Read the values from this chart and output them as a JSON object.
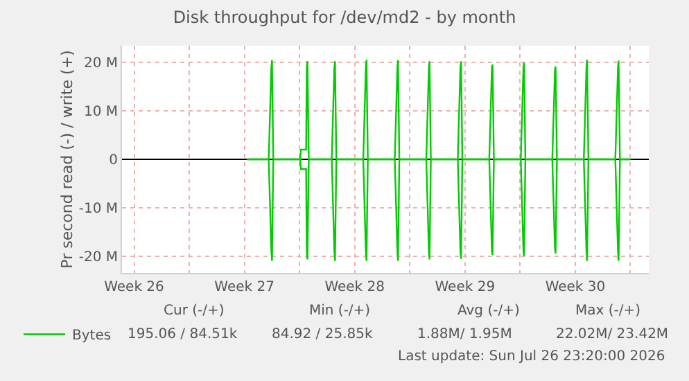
{
  "chart_data": {
    "type": "line",
    "title": "Disk throughput for /dev/md2 - by month",
    "ylabel": "Pr second read (-) / write (+)",
    "xlim": [
      "2026-06-24T17:30",
      "2026-07-28T04:00"
    ],
    "xticks": [
      {
        "value": "2026-06-25T12:00",
        "label": "Week 26"
      },
      {
        "value": "2026-06-29",
        "label": null
      },
      {
        "value": "2026-07-02T12:00",
        "label": "Week 27"
      },
      {
        "value": "2026-07-06",
        "label": null
      },
      {
        "value": "2026-07-09T12:00",
        "label": "Week 28"
      },
      {
        "value": "2026-07-13",
        "label": null
      },
      {
        "value": "2026-07-16T12:00",
        "label": "Week 29"
      },
      {
        "value": "2026-07-20",
        "label": null
      },
      {
        "value": "2026-07-23T12:00",
        "label": "Week 30"
      },
      {
        "value": "2026-07-27",
        "label": null
      }
    ],
    "ylim": [
      -23.5,
      23.5
    ],
    "yticks": [
      {
        "value": -20,
        "label": "-20 M"
      },
      {
        "value": -10,
        "label": "-10 M"
      },
      0,
      {
        "value": 10,
        "label": "10 M"
      },
      {
        "value": 20,
        "label": "20 M"
      }
    ],
    "grid": true,
    "legend": "bottom left",
    "marker": "none",
    "line_style": "solid",
    "x": [
      "2026-07-02T16:00",
      "2026-07-04T01:00",
      "2026-07-04T05:00",
      "2026-07-04T06:00",
      "2026-07-04T08:00",
      "2026-07-06T01:00",
      "2026-07-06T02:00",
      "2026-07-06T10:00",
      "2026-07-06T11:00",
      "2026-07-06T12:00",
      "2026-07-06T14:00",
      "2026-07-08T01:00",
      "2026-07-08T05:00",
      "2026-07-08T06:00",
      "2026-07-08T08:00",
      "2026-07-10T01:00",
      "2026-07-10T05:00",
      "2026-07-10T06:00",
      "2026-07-10T08:00",
      "2026-07-12T01:00",
      "2026-07-12T05:00",
      "2026-07-12T06:00",
      "2026-07-12T08:00",
      "2026-07-14T01:00",
      "2026-07-14T05:00",
      "2026-07-14T06:00",
      "2026-07-14T08:00",
      "2026-07-16T01:00",
      "2026-07-16T05:00",
      "2026-07-16T06:00",
      "2026-07-16T08:00",
      "2026-07-18T01:00",
      "2026-07-18T05:00",
      "2026-07-18T06:00",
      "2026-07-18T08:00",
      "2026-07-20T01:00",
      "2026-07-20T05:00",
      "2026-07-20T06:00",
      "2026-07-20T08:00",
      "2026-07-22T01:00",
      "2026-07-22T05:00",
      "2026-07-22T06:00",
      "2026-07-22T08:00",
      "2026-07-24T01:00",
      "2026-07-24T05:00",
      "2026-07-24T06:00",
      "2026-07-24T08:00",
      "2026-07-26T01:00",
      "2026-07-26T05:00",
      "2026-07-26T06:00",
      "2026-07-26T08:00",
      "2026-07-27T00:00"
    ],
    "series": [
      {
        "name": "Bytes",
        "color": "#00cc00",
        "values": [
          0,
          0,
          19,
          20.5,
          0,
          0,
          2,
          2,
          19,
          20.3,
          0,
          0,
          19,
          20.3,
          0,
          0,
          19,
          20.6,
          0,
          0,
          19,
          20.5,
          0,
          0,
          19,
          20.3,
          0,
          0,
          19,
          20.3,
          0,
          0,
          19,
          19.6,
          0,
          0,
          19,
          20,
          0,
          0,
          18.5,
          19.2,
          0,
          0,
          19,
          20.6,
          0,
          0,
          19,
          20.4,
          0,
          0
        ]
      },
      {
        "color": "#00cc00",
        "values": [
          0,
          0,
          -19,
          -21,
          0,
          0,
          -2,
          -2,
          -19,
          -20.7,
          0,
          0,
          -19,
          -21,
          0,
          0,
          -19,
          -21,
          0,
          0,
          -19,
          -21,
          0,
          0,
          -19,
          -20.7,
          0,
          0,
          -19,
          -20.6,
          0,
          0,
          -19,
          -19.8,
          0,
          0,
          -19,
          -20,
          0,
          0,
          -18.5,
          -19.5,
          0,
          0,
          -19,
          -21,
          0,
          0,
          -19,
          -21,
          0,
          0
        ]
      }
    ],
    "annotations": [
      "Cur (-/+)",
      "Min (-/+)",
      "Avg (-/+)",
      "Max (-/+)",
      "195.06 / 84.51k",
      "84.92 / 25.85k",
      "1.88M/ 1.95M",
      "22.02M/ 23.42M",
      "Last update: Sun Jul 26 23:20:00 2026"
    ]
  }
}
